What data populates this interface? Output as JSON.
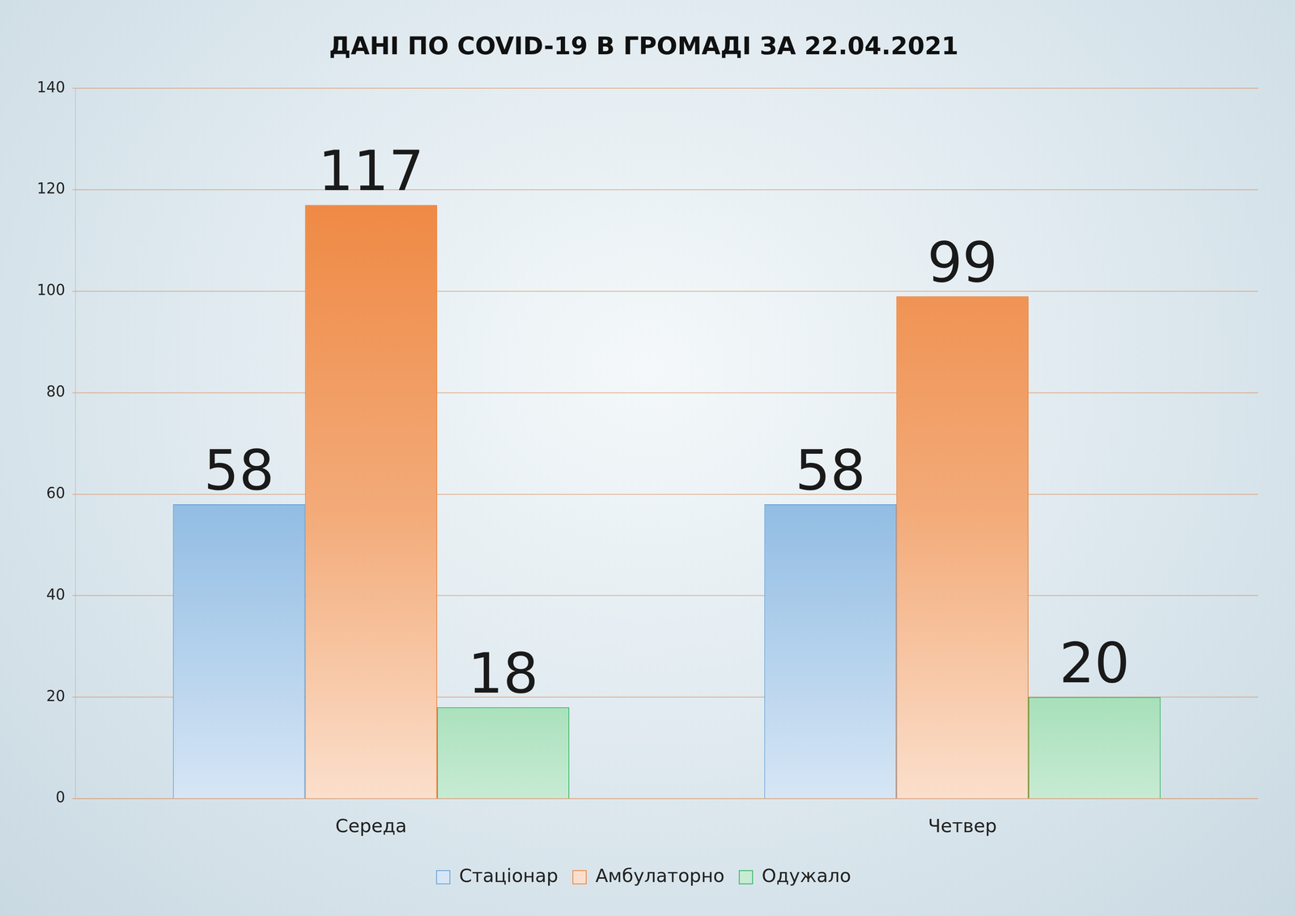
{
  "chart_data": {
    "type": "bar",
    "title": "ДАНІ ПО COVID-19 В ГРОМАДІ ЗА 22.04.2021",
    "categories": [
      "Середа",
      "Четвер"
    ],
    "series": [
      {
        "name": "Стаціонар",
        "color": "#5b9bd5",
        "values": [
          58,
          58
        ]
      },
      {
        "name": "Амбулаторно",
        "color": "#ed7d31",
        "values": [
          117,
          99
        ]
      },
      {
        "name": "Одужало",
        "color": "#1fb050",
        "values": [
          18,
          20
        ]
      }
    ],
    "ylim": [
      0,
      140
    ],
    "yticks": [
      0,
      20,
      40,
      60,
      80,
      100,
      120,
      140
    ],
    "grid": true,
    "legend": "bottom",
    "data_labels": true
  }
}
